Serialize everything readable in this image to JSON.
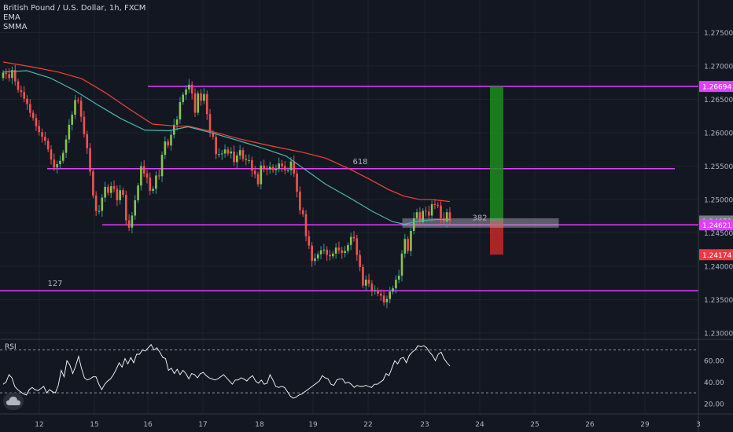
{
  "legend": {
    "symbol": "British Pound / U.S. Dollar, 1h, FXCM",
    "ind1": "EMA",
    "ind2": "SMMA"
  },
  "rsi_label": "RSI",
  "icons": {
    "logo": "tradingview-cloud-icon"
  },
  "colors": {
    "background": "#131722",
    "grid": "#1e222d",
    "up": "#26a69a",
    "up_body": "#8bc34a",
    "down": "#ef5350",
    "down_body": "#b71c1c",
    "ema": "#f44336",
    "smma": "#4db6ac",
    "level": "#e040fb",
    "target": "#1b5e20",
    "target_fill": "#1e8b1e",
    "stop": "#c62828",
    "rsi": "#ffffff"
  },
  "chart_data": {
    "type": "candlestick",
    "y_axis": {
      "ticks": [
        "1.27500",
        "1.27000",
        "1.26500",
        "1.26000",
        "1.25500",
        "1.25000",
        "1.24500",
        "1.24000",
        "1.23500",
        "1.23000"
      ],
      "ylim": [
        1.2293,
        1.2793
      ]
    },
    "x_axis": {
      "ticks": [
        "12",
        "15",
        "16",
        "17",
        "18",
        "19",
        "22",
        "23",
        "24",
        "25",
        "26",
        "29",
        "3"
      ]
    },
    "price_labels": [
      {
        "text": "1.26694",
        "value": 1.26694,
        "kind": "level"
      },
      {
        "text": "1.24678",
        "value": 1.24678,
        "kind": "current"
      },
      {
        "text": "1.24621",
        "value": 1.24621,
        "kind": "level"
      },
      {
        "text": "1.24174",
        "value": 1.24174,
        "kind": "stop"
      }
    ],
    "levels": [
      {
        "value": 1.26694,
        "label": ""
      },
      {
        "value": 1.25462,
        "label": "618"
      },
      {
        "value": 1.24621,
        "label": "382"
      },
      {
        "value": 1.23635,
        "label": "127"
      }
    ],
    "position": {
      "entry": 1.24678,
      "target": 1.26694,
      "stop": 1.24174
    },
    "close": [
      1.269,
      1.2688,
      1.2682,
      1.2694,
      1.2677,
      1.2664,
      1.2661,
      1.2651,
      1.2643,
      1.263,
      1.2622,
      1.261,
      1.2601,
      1.2594,
      1.2588,
      1.2575,
      1.256,
      1.2548,
      1.2553,
      1.2558,
      1.257,
      1.259,
      1.2612,
      1.2627,
      1.2649,
      1.2648,
      1.2624,
      1.2598,
      1.2577,
      1.2542,
      1.2506,
      1.2483,
      1.2483,
      1.2503,
      1.2519,
      1.251,
      1.252,
      1.2516,
      1.2499,
      1.2514,
      1.2507,
      1.2469,
      1.2458,
      1.2476,
      1.2499,
      1.2521,
      1.255,
      1.2539,
      1.2533,
      1.2513,
      1.2516,
      1.2536,
      1.2535,
      1.2567,
      1.2587,
      1.2581,
      1.2597,
      1.2612,
      1.262,
      1.2646,
      1.2657,
      1.2665,
      1.2672,
      1.2659,
      1.263,
      1.2659,
      1.2648,
      1.2658,
      1.2628,
      1.26,
      1.2594,
      1.2568,
      1.2568,
      1.2569,
      1.2575,
      1.2569,
      1.2572,
      1.2556,
      1.2566,
      1.2574,
      1.2561,
      1.2559,
      1.2559,
      1.2543,
      1.2538,
      1.2523,
      1.2551,
      1.2546,
      1.2545,
      1.2549,
      1.2544,
      1.2546,
      1.2554,
      1.255,
      1.2544,
      1.2544,
      1.2557,
      1.2539,
      1.2512,
      1.2484,
      1.2478,
      1.2445,
      1.2431,
      1.2408,
      1.2412,
      1.2418,
      1.2424,
      1.2425,
      1.2417,
      1.2415,
      1.2419,
      1.2428,
      1.2424,
      1.242,
      1.2423,
      1.2432,
      1.2444,
      1.2442,
      1.2417,
      1.2399,
      1.2371,
      1.238,
      1.2374,
      1.2364,
      1.2364,
      1.2359,
      1.2356,
      1.2346,
      1.2351,
      1.2362,
      1.2367,
      1.238,
      1.2386,
      1.2419,
      1.2441,
      1.2423,
      1.2453,
      1.2472,
      1.2481,
      1.2466,
      1.2483,
      1.2482,
      1.2476,
      1.2493,
      1.2492,
      1.2491,
      1.2472,
      1.2467,
      1.2481,
      1.2468
    ],
    "ema": [
      [
        1.2706,
        0
      ],
      [
        1.2699,
        35
      ],
      [
        1.2691,
        70
      ],
      [
        1.2681,
        100
      ],
      [
        1.266,
        130
      ],
      [
        1.2636,
        160
      ],
      [
        1.2613,
        190
      ],
      [
        1.261,
        220
      ],
      [
        1.261,
        235
      ],
      [
        1.2602,
        265
      ],
      [
        1.2591,
        300
      ],
      [
        1.2583,
        330
      ],
      [
        1.2578,
        350
      ],
      [
        1.2571,
        380
      ],
      [
        1.2562,
        410
      ],
      [
        1.2546,
        440
      ],
      [
        1.2531,
        465
      ],
      [
        1.2515,
        490
      ],
      [
        1.2505,
        510
      ],
      [
        1.25,
        530
      ],
      [
        1.25,
        545
      ],
      [
        1.2497,
        568
      ]
    ],
    "smma": [
      [
        1.2691,
        0
      ],
      [
        1.2693,
        30
      ],
      [
        1.2682,
        60
      ],
      [
        1.2664,
        90
      ],
      [
        1.2642,
        120
      ],
      [
        1.2621,
        150
      ],
      [
        1.2604,
        180
      ],
      [
        1.2603,
        210
      ],
      [
        1.2609,
        235
      ],
      [
        1.26,
        265
      ],
      [
        1.2588,
        300
      ],
      [
        1.2577,
        330
      ],
      [
        1.2565,
        360
      ],
      [
        1.2544,
        385
      ],
      [
        1.2523,
        410
      ],
      [
        1.2503,
        440
      ],
      [
        1.2482,
        470
      ],
      [
        1.2467,
        495
      ],
      [
        1.2463,
        510
      ],
      [
        1.2468,
        530
      ],
      [
        1.247,
        550
      ],
      [
        1.247,
        568
      ]
    ],
    "rsi": {
      "ticks": [
        "60.00",
        "40.00",
        "20.00"
      ],
      "bands": [
        70,
        30
      ],
      "range": [
        14,
        77
      ],
      "values": [
        38,
        40,
        47,
        44,
        36,
        33,
        31,
        29,
        28,
        33,
        35,
        33,
        32,
        34,
        36,
        30,
        33,
        31,
        30,
        37,
        51,
        45,
        60,
        56,
        48,
        55,
        64,
        53,
        44,
        42,
        43,
        45,
        45,
        38,
        33,
        38,
        41,
        43,
        47,
        52,
        58,
        54,
        62,
        57,
        63,
        58,
        66,
        66,
        70,
        69,
        72,
        75,
        70,
        72,
        68,
        63,
        62,
        51,
        53,
        48,
        52,
        47,
        51,
        48,
        43,
        48,
        47,
        44,
        48,
        49,
        46,
        44,
        43,
        42,
        43,
        45,
        47,
        44,
        41,
        38,
        42,
        42,
        44,
        43,
        41,
        44,
        46,
        41,
        39,
        42,
        38,
        39,
        47,
        42,
        36,
        35,
        36,
        35,
        31,
        27,
        25,
        26,
        28,
        29,
        31,
        33,
        35,
        37,
        39,
        41,
        46,
        44,
        43,
        38,
        37,
        42,
        43,
        43,
        39,
        40,
        38,
        35,
        37,
        36,
        36,
        37,
        36,
        35,
        38,
        38,
        40,
        42,
        48,
        46,
        53,
        60,
        57,
        62,
        63,
        58,
        65,
        68,
        70,
        74,
        73,
        74,
        72,
        68,
        65,
        60,
        66,
        68,
        62,
        58,
        55
      ]
    }
  }
}
